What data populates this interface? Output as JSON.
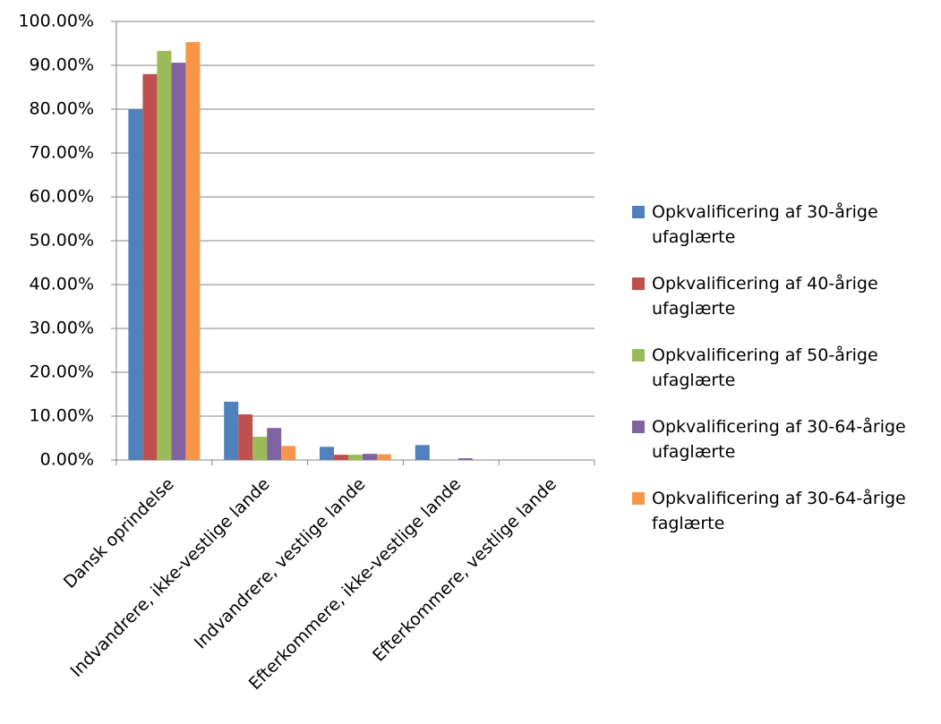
{
  "chart_data": {
    "type": "bar",
    "categories": [
      "Dansk oprindelse",
      "Indvandrere, ikke-vestlige lande",
      "Indvandrere, vestlige lande",
      "Efterkommere, ikke-vestlige lande",
      "Efterkommere, vestlige lande"
    ],
    "series": [
      {
        "name": "Opkvalificering af 30-årige ufaglærte",
        "color": "#4f81bd",
        "values": [
          80.0,
          13.3,
          3.0,
          3.4,
          0
        ]
      },
      {
        "name": "Opkvalificering af 40-årige ufaglærte",
        "color": "#c0504d",
        "values": [
          88.0,
          10.4,
          1.2,
          0,
          0
        ]
      },
      {
        "name": "Opkvalificering af 50-årige ufaglærte",
        "color": "#9bbb59",
        "values": [
          93.3,
          5.3,
          1.2,
          0,
          0
        ]
      },
      {
        "name": "Opkvalificering af 30-64-årige ufaglærte",
        "color": "#8064a2",
        "values": [
          90.6,
          7.3,
          1.4,
          0.4,
          0
        ]
      },
      {
        "name": "Opkvalificering af 30-64-årige faglærte",
        "color": "#f79646",
        "values": [
          95.3,
          3.2,
          1.3,
          0,
          0
        ]
      }
    ],
    "ylim": [
      0,
      100
    ],
    "yticks": [
      {
        "value": 0,
        "label": "0.00%"
      },
      {
        "value": 10,
        "label": "10.00%"
      },
      {
        "value": 20,
        "label": "20.00%"
      },
      {
        "value": 30,
        "label": "30.00%"
      },
      {
        "value": 40,
        "label": "40.00%"
      },
      {
        "value": 50,
        "label": "50.00%"
      },
      {
        "value": 60,
        "label": "60.00%"
      },
      {
        "value": 70,
        "label": "70.00%"
      },
      {
        "value": 80,
        "label": "80.00%"
      },
      {
        "value": 90,
        "label": "90.00%"
      },
      {
        "value": 100,
        "label": "100.00%"
      }
    ],
    "grid": true,
    "legend": "right"
  }
}
